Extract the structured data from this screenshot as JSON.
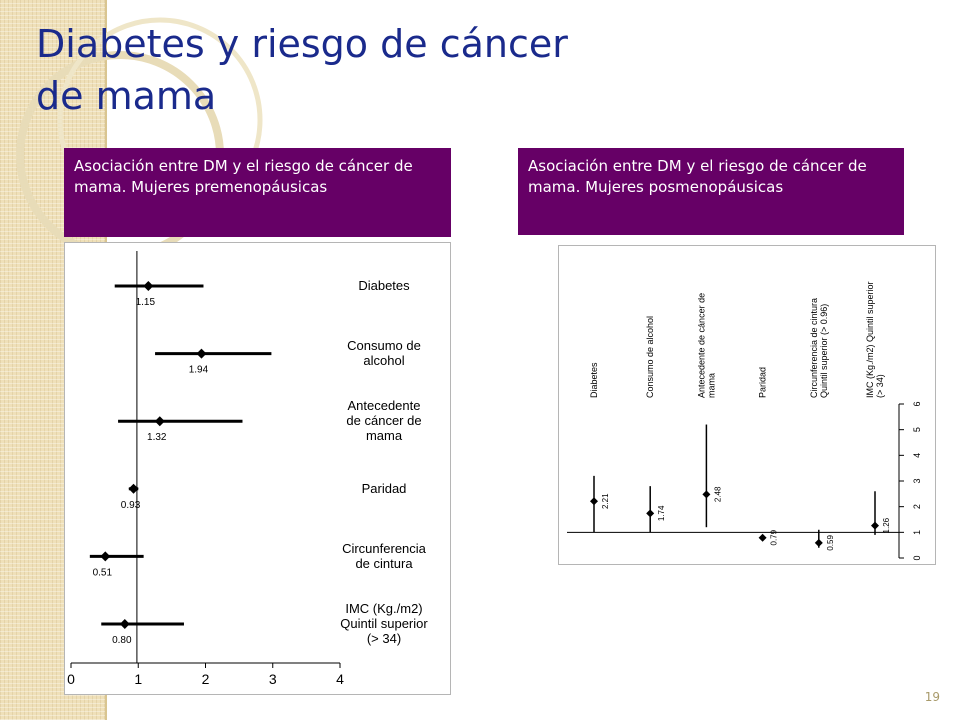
{
  "slide": {
    "title": "Diabetes y riesgo de cáncer de mama",
    "page_number": "19"
  },
  "colors": {
    "header_bg": "#660066",
    "title": "#1a2a8c",
    "band": "#efe0b9"
  },
  "chart_data": [
    {
      "type": "scatter",
      "subtype": "forest-plot",
      "header": "Asociación entre DM y el riesgo de cáncer de mama. Mujeres premenopáusicas",
      "orientation": "horizontal",
      "xlim": [
        0,
        4
      ],
      "x_ticks": [
        "0",
        "1",
        "2",
        "3",
        "4"
      ],
      "reference_line": 0.98,
      "points": [
        {
          "label": [
            "Diabetes"
          ],
          "value": 1.15,
          "value_label": "1.15",
          "ci": [
            0.65,
            1.97
          ]
        },
        {
          "label": [
            "Consumo de",
            "alcohol"
          ],
          "value": 1.94,
          "value_label": "1.94",
          "ci": [
            1.25,
            2.98
          ]
        },
        {
          "label": [
            "Antecedente",
            "de cáncer de",
            "mama"
          ],
          "value": 1.32,
          "value_label": "1.32",
          "ci": [
            0.7,
            2.55
          ]
        },
        {
          "label": [
            "Paridad"
          ],
          "value": 0.93,
          "value_label": "0.93",
          "ci": [
            0.86,
            1.0
          ]
        },
        {
          "label": [
            "Circunferencia",
            "de cintura"
          ],
          "value": 0.51,
          "value_label": "0.51",
          "ci": [
            0.28,
            1.08
          ]
        },
        {
          "label": [
            "IMC (Kg./m2)",
            "Quintil superior",
            "(> 34)"
          ],
          "value": 0.8,
          "value_label": "0.80",
          "ci": [
            0.45,
            1.68
          ]
        }
      ]
    },
    {
      "type": "scatter",
      "subtype": "forest-plot",
      "header": "Asociación entre DM y el riesgo de cáncer de mama. Mujeres posmenopáusicas",
      "orientation": "vertical",
      "ylim": [
        0,
        6
      ],
      "y_ticks": [
        "0",
        "1",
        "2",
        "3",
        "4",
        "5",
        "6"
      ],
      "reference_line": 1,
      "points": [
        {
          "label": [
            "Diabetes"
          ],
          "value": 2.21,
          "value_label": "2.21",
          "ci": [
            1.0,
            3.2
          ]
        },
        {
          "label": [
            "Consumo de alcohol"
          ],
          "value": 1.74,
          "value_label": "1.74",
          "ci": [
            1.0,
            2.8
          ]
        },
        {
          "label": [
            "Antecedente de cáncer de",
            "mama"
          ],
          "value": 2.48,
          "value_label": "2.48",
          "ci": [
            1.2,
            5.2
          ]
        },
        {
          "label": [
            "Paridad"
          ],
          "value": 0.79,
          "value_label": "0.79",
          "ci": [
            0.75,
            0.85
          ]
        },
        {
          "label": [
            "Circunferencia de cintura",
            "Quintil superior (> 0.96)"
          ],
          "value": 0.59,
          "value_label": "0.59",
          "ci": [
            0.4,
            1.1
          ]
        },
        {
          "label": [
            "IMC (Kg./m2) Quintil superior",
            "(> 34)"
          ],
          "value": 1.26,
          "value_label": "1.26",
          "ci": [
            0.9,
            2.6
          ]
        }
      ]
    }
  ]
}
